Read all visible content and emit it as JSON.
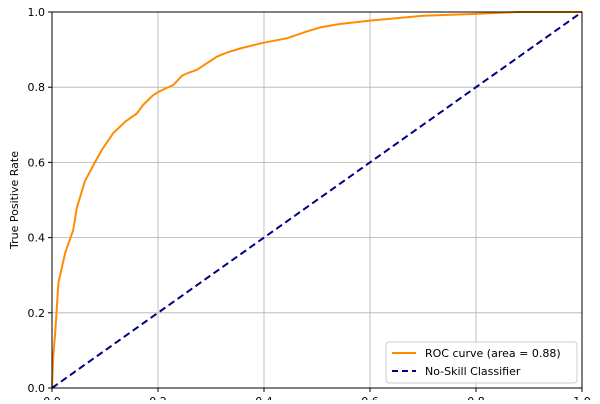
{
  "chart_data": {
    "type": "line",
    "title": "",
    "xlabel": "",
    "ylabel": "True Positive Rate",
    "xlim": [
      0,
      1
    ],
    "ylim": [
      0,
      1
    ],
    "grid": true,
    "legend_placement": "lower-right",
    "x_ticks": [
      "0.0",
      "0.2",
      "0.4",
      "0.6",
      "0.8",
      "1.0"
    ],
    "y_ticks": [
      "0.0",
      "0.2",
      "0.4",
      "0.6",
      "0.8",
      "1.0"
    ],
    "series": [
      {
        "name": "ROC curve (area = 0.88)",
        "color": "#ff8c00",
        "style": "solid",
        "x": [
          0,
          0.002,
          0.006,
          0.012,
          0.025,
          0.04,
          0.047,
          0.062,
          0.081,
          0.094,
          0.115,
          0.138,
          0.16,
          0.172,
          0.191,
          0.204,
          0.229,
          0.245,
          0.257,
          0.273,
          0.311,
          0.33,
          0.355,
          0.398,
          0.443,
          0.48,
          0.506,
          0.543,
          0.6,
          0.7,
          0.8,
          0.88,
          1.0
        ],
        "y": [
          0,
          0.08,
          0.146,
          0.28,
          0.36,
          0.42,
          0.48,
          0.55,
          0.6,
          0.633,
          0.677,
          0.708,
          0.73,
          0.753,
          0.779,
          0.79,
          0.806,
          0.83,
          0.838,
          0.846,
          0.881,
          0.892,
          0.903,
          0.918,
          0.93,
          0.948,
          0.959,
          0.968,
          0.977,
          0.99,
          0.995,
          1.0,
          1.0
        ]
      },
      {
        "name": "No-Skill Classifier",
        "color": "#000080",
        "style": "dashed",
        "x": [
          0,
          1
        ],
        "y": [
          0,
          1
        ]
      }
    ]
  }
}
